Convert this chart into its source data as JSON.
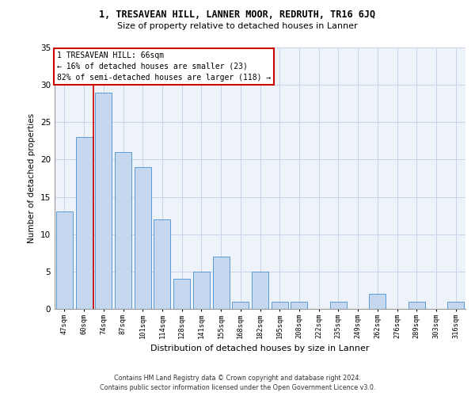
{
  "title1": "1, TRESAVEAN HILL, LANNER MOOR, REDRUTH, TR16 6JQ",
  "title2": "Size of property relative to detached houses in Lanner",
  "xlabel": "Distribution of detached houses by size in Lanner",
  "ylabel": "Number of detached properties",
  "categories": [
    "47sqm",
    "60sqm",
    "74sqm",
    "87sqm",
    "101sqm",
    "114sqm",
    "128sqm",
    "141sqm",
    "155sqm",
    "168sqm",
    "182sqm",
    "195sqm",
    "208sqm",
    "222sqm",
    "235sqm",
    "249sqm",
    "262sqm",
    "276sqm",
    "289sqm",
    "303sqm",
    "316sqm"
  ],
  "values": [
    13,
    23,
    29,
    21,
    19,
    12,
    4,
    5,
    7,
    1,
    5,
    1,
    1,
    0,
    1,
    0,
    2,
    0,
    1,
    0,
    1
  ],
  "bar_color": "#c5d8f0",
  "bar_edge_color": "#5b9bd5",
  "vline_x": 1.5,
  "vline_color": "#cc0000",
  "annotation_box_text": "1 TRESAVEAN HILL: 66sqm\n← 16% of detached houses are smaller (23)\n82% of semi-detached houses are larger (118) →",
  "annotation_box_color": "#cc0000",
  "annotation_box_bg": "#ffffff",
  "ylim": [
    0,
    35
  ],
  "yticks": [
    0,
    5,
    10,
    15,
    20,
    25,
    30,
    35
  ],
  "grid_color": "#c8d4e8",
  "bg_color": "#eef2f9",
  "footer_line1": "Contains HM Land Registry data © Crown copyright and database right 2024.",
  "footer_line2": "Contains public sector information licensed under the Open Government Licence v3.0."
}
